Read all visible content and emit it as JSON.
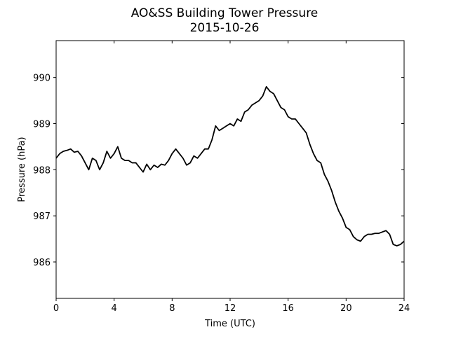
{
  "chart_data": {
    "type": "line",
    "title": "AO&SS Building Tower Pressure",
    "subtitle": "2015-10-26",
    "xlabel": "Time (UTC)",
    "ylabel": "Pressure (hPa)",
    "x": [
      0,
      0.25,
      0.5,
      0.75,
      1,
      1.25,
      1.5,
      1.75,
      2,
      2.25,
      2.5,
      2.75,
      3,
      3.25,
      3.5,
      3.75,
      4,
      4.25,
      4.5,
      4.75,
      5,
      5.25,
      5.5,
      5.75,
      6,
      6.25,
      6.5,
      6.75,
      7,
      7.25,
      7.5,
      7.75,
      8,
      8.25,
      8.5,
      8.75,
      9,
      9.25,
      9.5,
      9.75,
      10,
      10.25,
      10.5,
      10.75,
      11,
      11.25,
      11.5,
      11.75,
      12,
      12.25,
      12.5,
      12.75,
      13,
      13.25,
      13.5,
      13.75,
      14,
      14.25,
      14.5,
      14.75,
      15,
      15.25,
      15.5,
      15.75,
      16,
      16.25,
      16.5,
      16.75,
      17,
      17.25,
      17.5,
      17.75,
      18,
      18.25,
      18.5,
      18.75,
      19,
      19.25,
      19.5,
      19.75,
      20,
      20.25,
      20.5,
      20.75,
      21,
      21.25,
      21.5,
      21.75,
      22,
      22.25,
      22.5,
      22.75,
      23,
      23.25,
      23.5,
      23.75,
      24
    ],
    "series": [
      {
        "name": "Pressure",
        "color": "#000000",
        "values": [
          988.25,
          988.35,
          988.4,
          988.42,
          988.45,
          988.38,
          988.4,
          988.3,
          988.15,
          988.0,
          988.25,
          988.2,
          988.0,
          988.15,
          988.4,
          988.25,
          988.35,
          988.5,
          988.25,
          988.2,
          988.2,
          988.15,
          988.15,
          988.05,
          987.95,
          988.12,
          988.0,
          988.1,
          988.05,
          988.12,
          988.1,
          988.2,
          988.35,
          988.45,
          988.35,
          988.25,
          988.1,
          988.15,
          988.3,
          988.25,
          988.35,
          988.45,
          988.45,
          988.65,
          988.95,
          988.85,
          988.9,
          988.95,
          989.0,
          988.95,
          989.1,
          989.05,
          989.25,
          989.3,
          989.4,
          989.45,
          989.5,
          989.6,
          989.8,
          989.7,
          989.65,
          989.5,
          989.35,
          989.3,
          989.15,
          989.1,
          989.1,
          989.0,
          988.9,
          988.8,
          988.55,
          988.35,
          988.2,
          988.15,
          987.9,
          987.75,
          987.55,
          987.3,
          987.1,
          986.95,
          986.75,
          986.7,
          986.55,
          986.48,
          986.45,
          986.55,
          986.6,
          986.6,
          986.62,
          986.62,
          986.65,
          986.68,
          986.6,
          986.38,
          986.35,
          986.38,
          986.45
        ]
      }
    ],
    "xlim": [
      0,
      24
    ],
    "xticks": [
      0,
      4,
      8,
      12,
      16,
      20,
      24
    ],
    "ylim": [
      985.21,
      990.8
    ],
    "yticks": [
      986,
      987,
      988,
      989,
      990
    ],
    "grid": false
  }
}
